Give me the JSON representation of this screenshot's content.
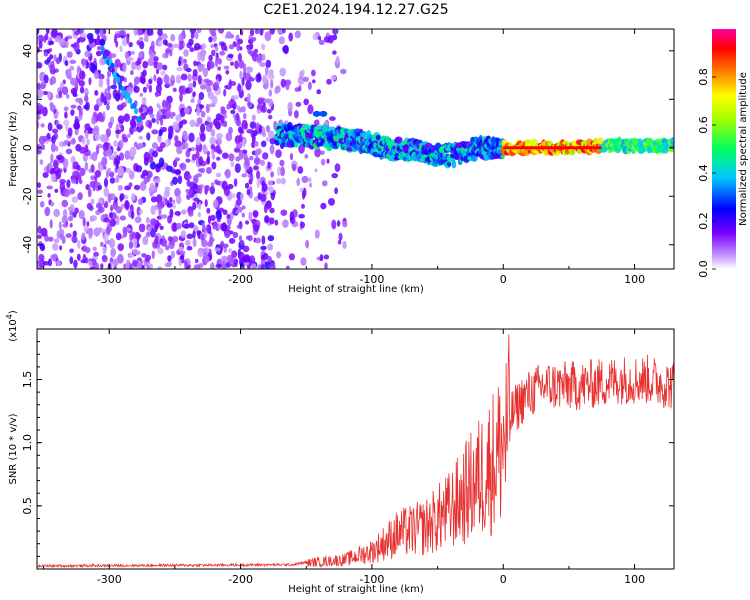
{
  "title": "C2E1.2024.194.12.27.G25",
  "chart_data": [
    {
      "type": "heatmap",
      "xlabel": "Height of straight line (km)",
      "ylabel": "Frequency (Hz)",
      "xlim": [
        -355,
        130
      ],
      "ylim": [
        -50,
        49
      ],
      "x_ticks": [
        -300,
        -200,
        -100,
        0,
        100
      ],
      "y_ticks": [
        40,
        20,
        0,
        -20,
        -40
      ],
      "colorbar": {
        "label": "Normalized spectral amplitude",
        "range": [
          0.0,
          1.0
        ],
        "ticks": [
          "0.0",
          "0.2",
          "0.4",
          "0.6",
          "0.8"
        ]
      },
      "ridge": [
        {
          "x": -170,
          "y": 5
        },
        {
          "x": -150,
          "y": 5
        },
        {
          "x": -130,
          "y": 4
        },
        {
          "x": -110,
          "y": 3
        },
        {
          "x": -90,
          "y": 0
        },
        {
          "x": -70,
          "y": -1
        },
        {
          "x": -50,
          "y": -3
        },
        {
          "x": -35,
          "y": -3
        },
        {
          "x": -20,
          "y": 0
        },
        {
          "x": 0,
          "y": 0
        },
        {
          "x": 50,
          "y": 0
        },
        {
          "x": 80,
          "y": 1
        },
        {
          "x": 130,
          "y": 1
        }
      ],
      "diagonal_streak": [
        {
          "x": -305,
          "y": 40
        },
        {
          "x": -290,
          "y": 25
        },
        {
          "x": -270,
          "y": 5
        },
        {
          "x": -250,
          "y": -10
        },
        {
          "x": -230,
          "y": -25
        },
        {
          "x": -210,
          "y": -42
        }
      ]
    },
    {
      "type": "line",
      "xlabel": "Height of straight line (km)",
      "ylabel": "SNR (10 * v/v)",
      "y_multiplier": "(x10",
      "y_multiplier_exp": "4",
      "y_multiplier_close": ")",
      "xlim": [
        -355,
        130
      ],
      "ylim": [
        0,
        1.9
      ],
      "x_ticks": [
        -300,
        -200,
        -100,
        0,
        100
      ],
      "y_ticks": [
        "0.5",
        "1.0",
        "1.5"
      ],
      "line_color": "#e83030",
      "envelope": [
        {
          "x": -355,
          "y": 0.02
        },
        {
          "x": -160,
          "y": 0.03
        },
        {
          "x": -150,
          "y": 0.05
        },
        {
          "x": -120,
          "y": 0.08
        },
        {
          "x": -100,
          "y": 0.15
        },
        {
          "x": -80,
          "y": 0.3
        },
        {
          "x": -60,
          "y": 0.35
        },
        {
          "x": -40,
          "y": 0.5
        },
        {
          "x": -20,
          "y": 0.75
        },
        {
          "x": -5,
          "y": 0.95
        },
        {
          "x": 5,
          "y": 1.2
        },
        {
          "x": 15,
          "y": 1.35
        },
        {
          "x": 30,
          "y": 1.45
        },
        {
          "x": 60,
          "y": 1.45
        },
        {
          "x": 90,
          "y": 1.5
        },
        {
          "x": 110,
          "y": 1.5
        },
        {
          "x": 130,
          "y": 1.45
        }
      ]
    }
  ]
}
